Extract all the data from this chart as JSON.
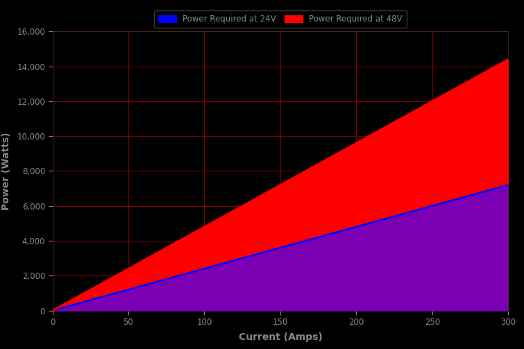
{
  "voltage_24": 24,
  "voltage_48": 48,
  "current_max": 300,
  "x_ticks": [
    0,
    50,
    100,
    150,
    200,
    250,
    300
  ],
  "y_ticks": [
    0,
    2000,
    4000,
    6000,
    8000,
    10000,
    12000,
    14000,
    16000
  ],
  "ylim": [
    0,
    16000
  ],
  "xlim": [
    0,
    300
  ],
  "xlabel": "Current (Amps)",
  "ylabel": "Power (Watts)",
  "label_24v": "Power Required at 24V",
  "label_48v": "Power Required at 48V",
  "bg_color": "#000000",
  "line_color_24v": "#0000ff",
  "line_color_48v": "#ff0000",
  "fill_color_24v": "#7b00b4",
  "fill_color_48v": "#ff0000",
  "grid_color": "#8b0000",
  "tick_color": "#888888",
  "label_color": "#888888",
  "legend_text_color": "#888888",
  "line_width": 2.0,
  "figsize": [
    7.55,
    5.03
  ],
  "dpi": 100
}
